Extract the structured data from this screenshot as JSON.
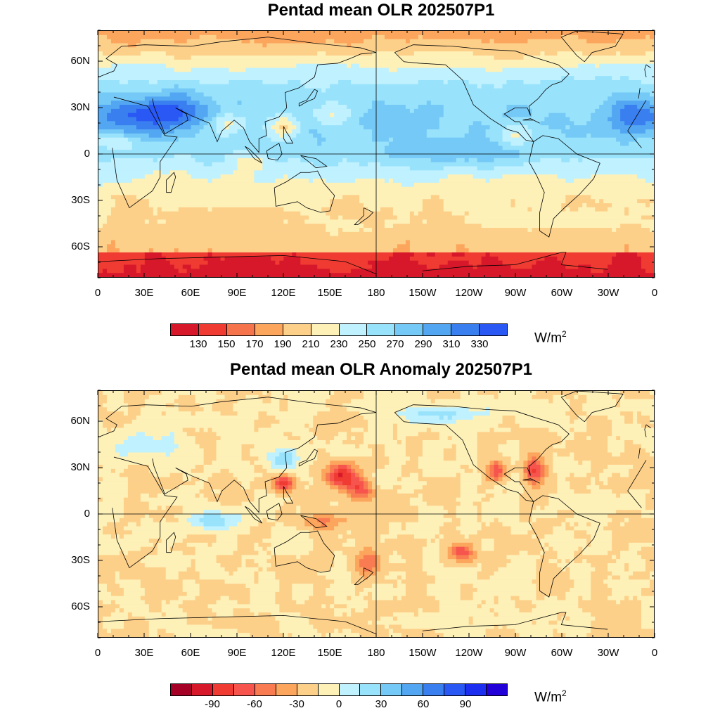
{
  "panel1": {
    "title": "Pentad mean OLR 202507P1",
    "colorbar": {
      "colors": [
        "#d7182a",
        "#f03b32",
        "#f6744c",
        "#fca55d",
        "#fdd08a",
        "#fdf1b8",
        "#bff1ff",
        "#98e2fb",
        "#75c9f6",
        "#53a7f2",
        "#3a7ff0",
        "#2958f5"
      ],
      "labels": [
        "130",
        "150",
        "170",
        "190",
        "210",
        "230",
        "250",
        "270",
        "290",
        "310",
        "330"
      ]
    },
    "units": "W/m",
    "units_sup": "2",
    "field_type": "olr"
  },
  "panel2": {
    "title": "Pentad mean OLR Anomaly 202507P1",
    "colorbar": {
      "colors": [
        "#a50026",
        "#d7182a",
        "#f03b32",
        "#f6544c",
        "#f87b52",
        "#fca55d",
        "#fdd08a",
        "#fdf1b8",
        "#bff1ff",
        "#98e2fb",
        "#75c9f6",
        "#53a7f2",
        "#3a7ff0",
        "#2958f5",
        "#1c2ff0",
        "#2200d8"
      ],
      "labels": [
        "-90",
        "-60",
        "-30",
        "0",
        "30",
        "60",
        "90"
      ]
    },
    "units": "W/m",
    "units_sup": "2",
    "field_type": "anomaly"
  },
  "x_tick_labels": [
    "0",
    "30E",
    "60E",
    "90E",
    "120E",
    "150E",
    "180",
    "150W",
    "120W",
    "90W",
    "60W",
    "30W",
    "0"
  ],
  "y_tick_labels": [
    "60N",
    "30N",
    "0",
    "30S",
    "60S"
  ]
}
